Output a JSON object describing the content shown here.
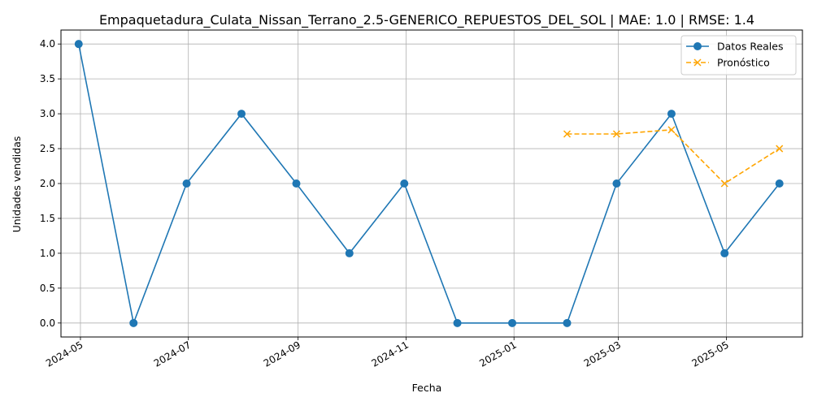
{
  "chart_data": {
    "type": "line",
    "title": "Empaquetadura_Culata_Nissan_Terrano_2.5-GENERICO_REPUESTOS_DEL_SOL | MAE: 1.0 | RMSE: 1.4",
    "xlabel": "Fecha",
    "ylabel": "Unidades vendidas",
    "x_axis_type": "date",
    "xlim": [
      "2024-04-20",
      "2025-06-13"
    ],
    "ylim": [
      -0.2,
      4.2
    ],
    "x_ticks": [
      "2024-05-01",
      "2024-07-01",
      "2024-09-01",
      "2024-11-01",
      "2025-01-01",
      "2025-03-01",
      "2025-05-01"
    ],
    "x_tick_labels": [
      "2024-05",
      "2024-07",
      "2024-09",
      "2024-11",
      "2025-01",
      "2025-03",
      "2025-05"
    ],
    "y_ticks": [
      0.0,
      0.5,
      1.0,
      1.5,
      2.0,
      2.5,
      3.0,
      3.5,
      4.0
    ],
    "y_tick_labels": [
      "0.0",
      "0.5",
      "1.0",
      "1.5",
      "2.0",
      "2.5",
      "3.0",
      "3.5",
      "4.0"
    ],
    "grid": true,
    "legend_position": "top-right",
    "series": [
      {
        "name": "Datos Reales",
        "color": "#1f77b4",
        "line_style": "solid",
        "marker": "circle",
        "x": [
          "2024-04-30",
          "2024-05-31",
          "2024-06-30",
          "2024-07-31",
          "2024-08-31",
          "2024-09-30",
          "2024-10-31",
          "2024-11-30",
          "2024-12-31",
          "2025-01-31",
          "2025-02-28",
          "2025-03-31",
          "2025-04-30",
          "2025-05-31"
        ],
        "values": [
          4,
          0,
          2,
          3,
          2,
          1,
          2,
          0,
          0,
          0,
          2,
          3,
          1,
          2
        ]
      },
      {
        "name": "Pronóstico",
        "color": "#ffa500",
        "line_style": "dashed",
        "marker": "x",
        "x": [
          "2025-01-31",
          "2025-02-28",
          "2025-03-31",
          "2025-04-30",
          "2025-05-31"
        ],
        "values": [
          2.71,
          2.71,
          2.77,
          2.0,
          2.5
        ]
      }
    ]
  }
}
